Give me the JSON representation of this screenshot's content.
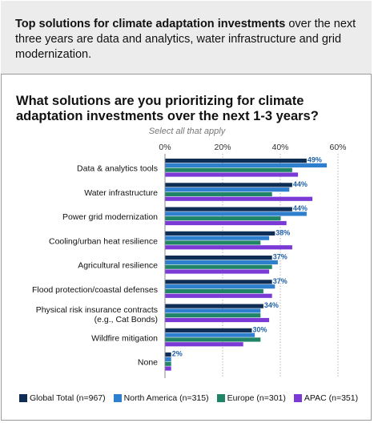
{
  "callout": {
    "bold": "Top solutions for climate adaptation investments",
    "rest": " over the next three years are data and analytics, water infrastructure and grid modernization."
  },
  "question": {
    "title": "What solutions are you prioritizing for climate adaptation investments over the next 1-3 years?",
    "subtitle": "Select all that apply"
  },
  "colors": {
    "Global Total": "#0f2e55",
    "North America": "#2e7fce",
    "Europe": "#208466",
    "APAC": "#7b3ad6"
  },
  "chart_data": {
    "type": "bar",
    "orientation": "horizontal",
    "xlim": [
      0,
      60
    ],
    "x_ticks": [
      "0%",
      "20%",
      "40%",
      "60%"
    ],
    "x_tick_values": [
      0,
      20,
      40,
      60
    ],
    "grid": true,
    "legend_position": "bottom",
    "categories": [
      [
        "Data & analytics tools"
      ],
      [
        "Water infrastructure"
      ],
      [
        "Power grid modernization"
      ],
      [
        "Cooling/urban heat resilience"
      ],
      [
        "Agricultural resilience"
      ],
      [
        "Flood protection/coastal defenses"
      ],
      [
        "Physical risk insurance contracts",
        "(e.g., Cat Bonds)"
      ],
      [
        "Wildfire mitigation"
      ],
      [
        "None"
      ]
    ],
    "data_labels": [
      "49%",
      "44%",
      "44%",
      "38%",
      "37%",
      "37%",
      "34%",
      "30%",
      "2%"
    ],
    "series": [
      {
        "name": "Global Total",
        "legend": "Global Total (n=967)",
        "values": [
          49,
          44,
          44,
          38,
          37,
          37,
          34,
          30,
          2
        ]
      },
      {
        "name": "North America",
        "legend": "North America (n=315)",
        "values": [
          56,
          43,
          49,
          36,
          39,
          38,
          33,
          31,
          2
        ]
      },
      {
        "name": "Europe",
        "legend": "Europe (n=301)",
        "values": [
          44,
          37,
          40,
          33,
          37,
          34,
          33,
          33,
          2
        ]
      },
      {
        "name": "APAC",
        "legend": "APAC (n=351)",
        "values": [
          46,
          51,
          42,
          44,
          36,
          37,
          36,
          27,
          2
        ]
      }
    ]
  }
}
